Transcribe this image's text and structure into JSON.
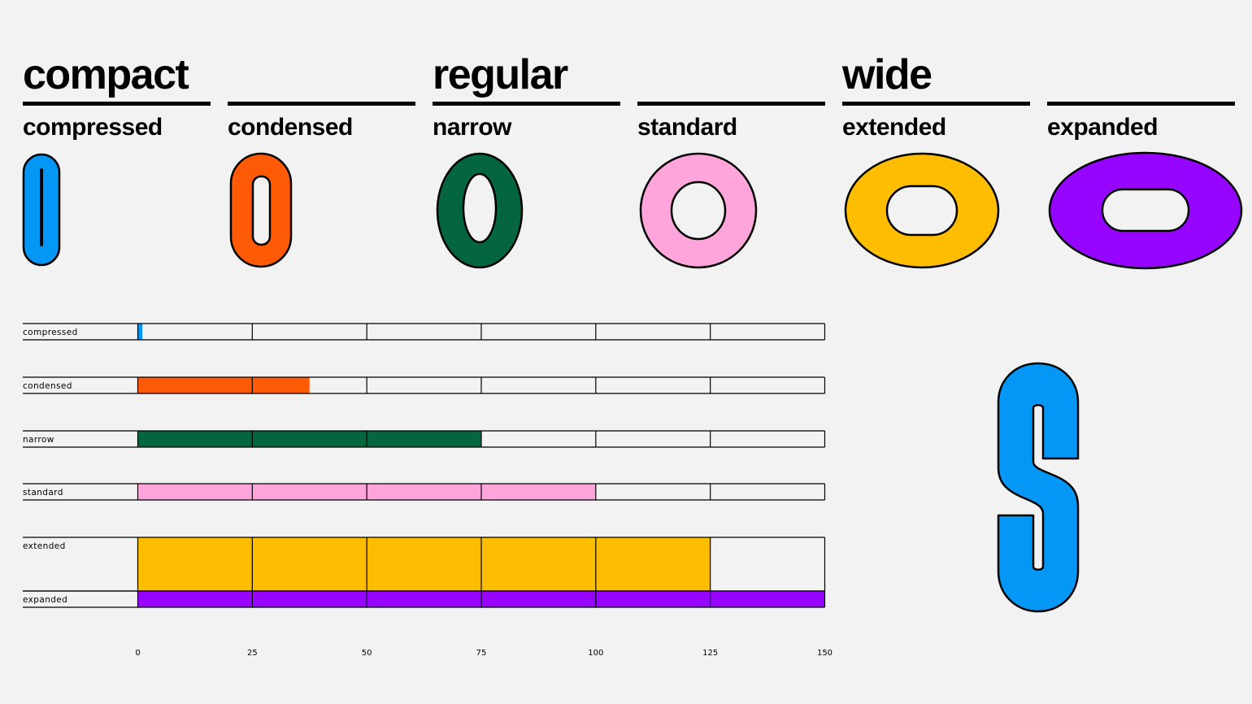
{
  "groups": [
    {
      "title": "compact"
    },
    {
      "title": ""
    },
    {
      "title": "regular"
    },
    {
      "title": ""
    },
    {
      "title": "wide"
    },
    {
      "title": ""
    }
  ],
  "widths": [
    {
      "name": "compressed",
      "color": "#0497f5",
      "icon": "o-glyph-compressed-icon"
    },
    {
      "name": "condensed",
      "color": "#ff5a05",
      "icon": "o-glyph-condensed-icon"
    },
    {
      "name": "narrow",
      "color": "#03663e",
      "icon": "o-glyph-narrow-icon"
    },
    {
      "name": "standard",
      "color": "#ffa5dc",
      "icon": "o-glyph-standard-icon"
    },
    {
      "name": "extended",
      "color": "#ffbd00",
      "icon": "o-glyph-extended-icon"
    },
    {
      "name": "expanded",
      "color": "#9505ff",
      "icon": "o-glyph-expanded-icon"
    }
  ],
  "chart_data": {
    "type": "bar",
    "orientation": "horizontal",
    "categories": [
      "compressed",
      "condensed",
      "narrow",
      "standard",
      "extended",
      "expanded"
    ],
    "values": [
      1,
      37.5,
      75,
      100,
      125,
      150
    ],
    "colors": [
      "#0497f5",
      "#ff5a05",
      "#03663e",
      "#ffa5dc",
      "#ffbd00",
      "#9505ff"
    ],
    "xlim": [
      0,
      150
    ],
    "xticks": [
      "0",
      "25",
      "50",
      "75",
      "100",
      "125",
      "150"
    ],
    "grid": true,
    "title": "",
    "xlabel": "",
    "ylabel": ""
  },
  "glyph_s": {
    "color": "#0497f5",
    "icon": "s-glyph-compressed-icon"
  }
}
